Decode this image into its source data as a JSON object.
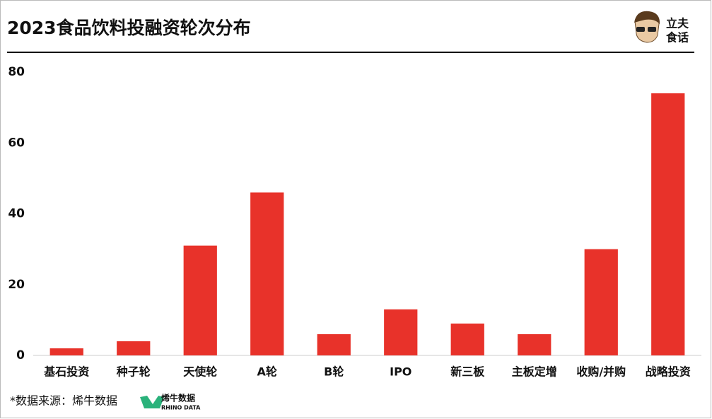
{
  "chart_data": {
    "type": "bar",
    "title": "2023食品饮料投融资轮次分布",
    "categories": [
      "基石投资",
      "种子轮",
      "天使轮",
      "A轮",
      "B轮",
      "IPO",
      "新三板",
      "主板定增",
      "收购/并购",
      "战略投资"
    ],
    "values": [
      2,
      4,
      31,
      46,
      6,
      13,
      9,
      6,
      30,
      74
    ],
    "color": "#e8322a",
    "ylim": [
      0,
      80
    ],
    "yticks": [
      0,
      20,
      40,
      60,
      80
    ],
    "grid": false,
    "brand": [
      "立夫",
      "食话"
    ],
    "source": "*数据来源：烯牛数据",
    "source_logo": {
      "name": "烯牛数据",
      "sub": "RHINO DATA"
    }
  }
}
